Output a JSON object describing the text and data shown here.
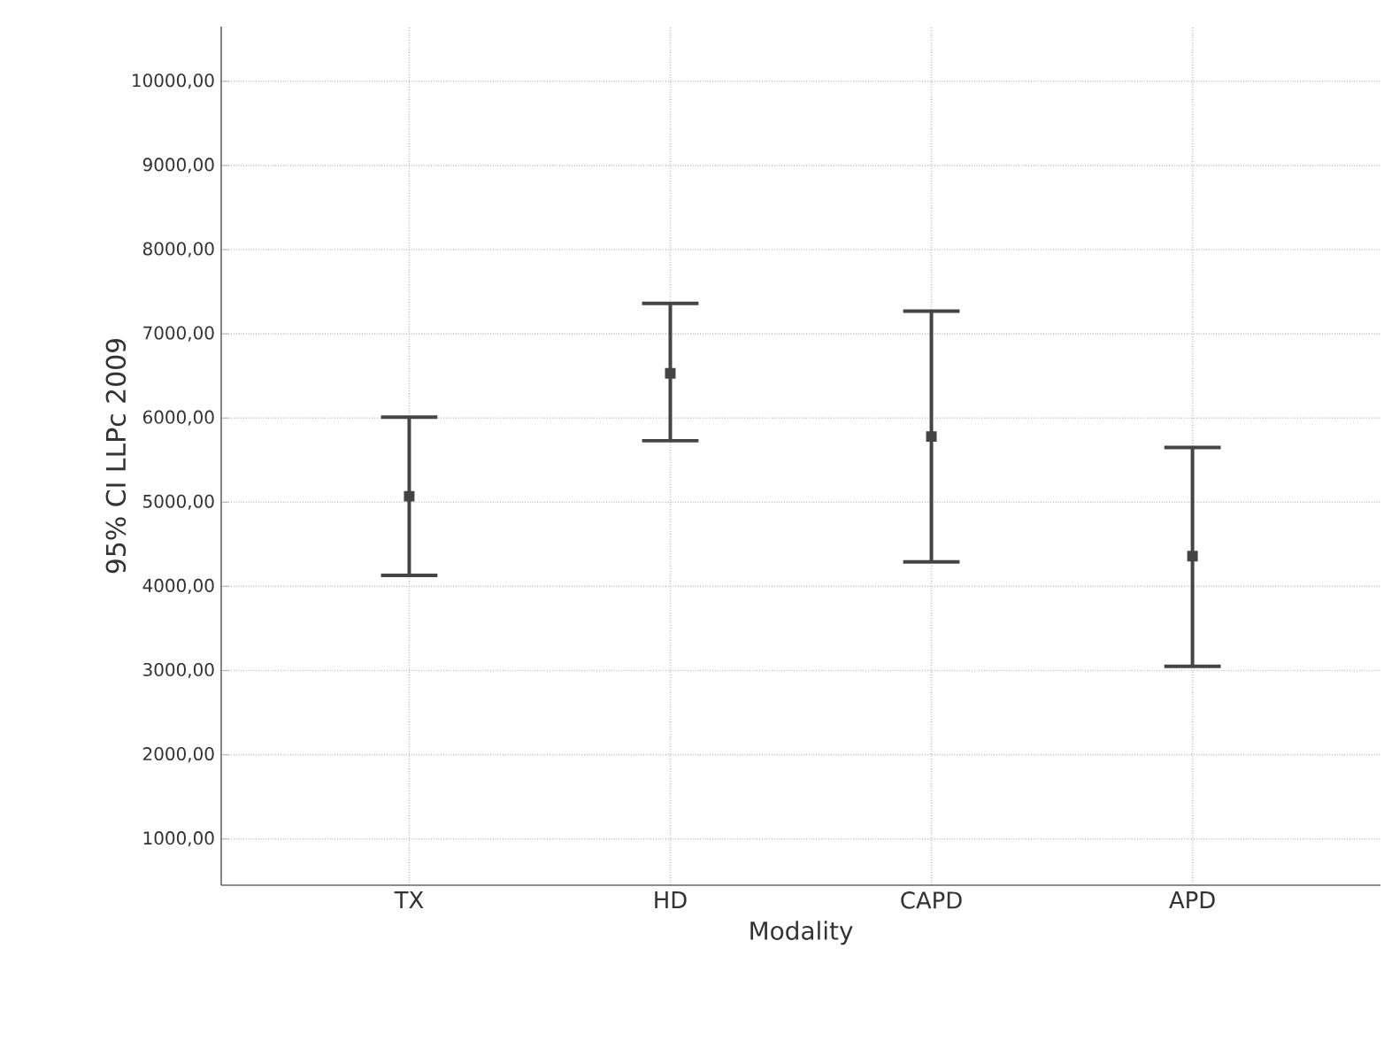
{
  "chart_data": {
    "type": "scatter",
    "xlabel": "Modality",
    "ylabel": "95% CI LLPc 2009",
    "categories": [
      "TX",
      "HD",
      "CAPD",
      "APD"
    ],
    "values": [
      5070,
      6530,
      5780,
      4360
    ],
    "errors": [
      [
        4130,
        6010
      ],
      [
        5730,
        7360
      ],
      [
        4290,
        7270
      ],
      [
        3050,
        5650
      ]
    ],
    "color": "#444444",
    "marker": "square",
    "grid": true,
    "ylim": [
      450,
      10650
    ],
    "yticks": [
      {
        "value": 1000,
        "label": "1000,00"
      },
      {
        "value": 2000,
        "label": "2000,00"
      },
      {
        "value": 3000,
        "label": "3000,00"
      },
      {
        "value": 4000,
        "label": "4000,00"
      },
      {
        "value": 5000,
        "label": "5000,00"
      },
      {
        "value": 6000,
        "label": "6000,00"
      },
      {
        "value": 7000,
        "label": "7000,00"
      },
      {
        "value": 8000,
        "label": "8000,00"
      },
      {
        "value": 9000,
        "label": "9000,00"
      },
      {
        "value": 10000,
        "label": "10000,00"
      }
    ]
  }
}
